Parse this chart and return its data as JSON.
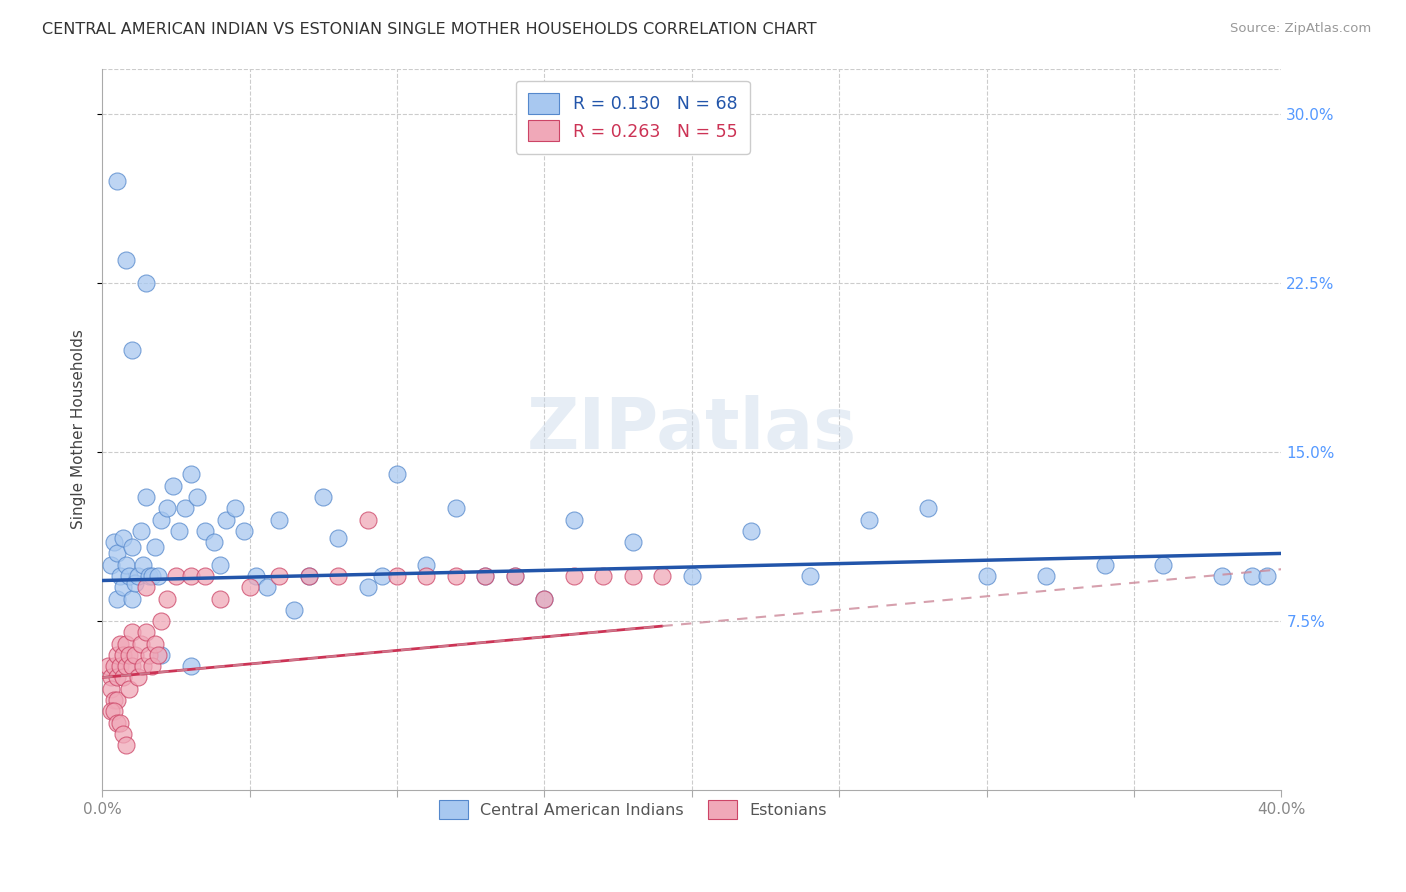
{
  "title": "CENTRAL AMERICAN INDIAN VS ESTONIAN SINGLE MOTHER HOUSEHOLDS CORRELATION CHART",
  "source": "Source: ZipAtlas.com",
  "ylabel": "Single Mother Households",
  "xlim": [
    0.0,
    0.4
  ],
  "ylim": [
    0.0,
    0.32
  ],
  "R_blue": 0.13,
  "N_blue": 68,
  "R_pink": 0.263,
  "N_pink": 55,
  "legend_label_blue": "Central American Indians",
  "legend_label_pink": "Estonians",
  "blue_color": "#a8c8f0",
  "pink_color": "#f0a8b8",
  "blue_edge_color": "#5588cc",
  "pink_edge_color": "#cc4466",
  "blue_line_color": "#2255aa",
  "pink_line_color": "#cc3355",
  "pink_dash_color": "#cc8899",
  "watermark_text": "ZIPatlas",
  "blue_line_intercept": 0.093,
  "blue_line_slope": 0.03,
  "pink_line_intercept": 0.05,
  "pink_line_slope": 0.12,
  "blue_x": [
    0.003,
    0.004,
    0.005,
    0.005,
    0.006,
    0.007,
    0.007,
    0.008,
    0.009,
    0.01,
    0.01,
    0.011,
    0.012,
    0.013,
    0.014,
    0.015,
    0.016,
    0.017,
    0.018,
    0.019,
    0.02,
    0.022,
    0.024,
    0.026,
    0.028,
    0.03,
    0.032,
    0.035,
    0.038,
    0.04,
    0.042,
    0.045,
    0.048,
    0.052,
    0.056,
    0.06,
    0.065,
    0.07,
    0.075,
    0.08,
    0.09,
    0.095,
    0.1,
    0.11,
    0.12,
    0.13,
    0.14,
    0.15,
    0.16,
    0.18,
    0.2,
    0.22,
    0.24,
    0.26,
    0.28,
    0.3,
    0.32,
    0.34,
    0.36,
    0.38,
    0.39,
    0.395,
    0.005,
    0.008,
    0.01,
    0.015,
    0.02,
    0.03
  ],
  "blue_y": [
    0.1,
    0.11,
    0.105,
    0.085,
    0.095,
    0.112,
    0.09,
    0.1,
    0.095,
    0.108,
    0.085,
    0.092,
    0.095,
    0.115,
    0.1,
    0.13,
    0.095,
    0.095,
    0.108,
    0.095,
    0.12,
    0.125,
    0.135,
    0.115,
    0.125,
    0.14,
    0.13,
    0.115,
    0.11,
    0.1,
    0.12,
    0.125,
    0.115,
    0.095,
    0.09,
    0.12,
    0.08,
    0.095,
    0.13,
    0.112,
    0.09,
    0.095,
    0.14,
    0.1,
    0.125,
    0.095,
    0.095,
    0.085,
    0.12,
    0.11,
    0.095,
    0.115,
    0.095,
    0.12,
    0.125,
    0.095,
    0.095,
    0.1,
    0.1,
    0.095,
    0.095,
    0.095,
    0.27,
    0.235,
    0.195,
    0.225,
    0.06,
    0.055
  ],
  "pink_x": [
    0.002,
    0.003,
    0.003,
    0.004,
    0.004,
    0.005,
    0.005,
    0.005,
    0.006,
    0.006,
    0.007,
    0.007,
    0.008,
    0.008,
    0.009,
    0.009,
    0.01,
    0.01,
    0.011,
    0.012,
    0.013,
    0.014,
    0.015,
    0.015,
    0.016,
    0.017,
    0.018,
    0.019,
    0.02,
    0.022,
    0.025,
    0.03,
    0.035,
    0.04,
    0.05,
    0.06,
    0.07,
    0.08,
    0.09,
    0.1,
    0.11,
    0.12,
    0.13,
    0.14,
    0.15,
    0.16,
    0.17,
    0.18,
    0.19,
    0.003,
    0.004,
    0.005,
    0.006,
    0.007,
    0.008
  ],
  "pink_y": [
    0.055,
    0.05,
    0.045,
    0.055,
    0.04,
    0.06,
    0.05,
    0.04,
    0.055,
    0.065,
    0.06,
    0.05,
    0.065,
    0.055,
    0.06,
    0.045,
    0.07,
    0.055,
    0.06,
    0.05,
    0.065,
    0.055,
    0.07,
    0.09,
    0.06,
    0.055,
    0.065,
    0.06,
    0.075,
    0.085,
    0.095,
    0.095,
    0.095,
    0.085,
    0.09,
    0.095,
    0.095,
    0.095,
    0.12,
    0.095,
    0.095,
    0.095,
    0.095,
    0.095,
    0.085,
    0.095,
    0.095,
    0.095,
    0.095,
    0.035,
    0.035,
    0.03,
    0.03,
    0.025,
    0.02
  ]
}
